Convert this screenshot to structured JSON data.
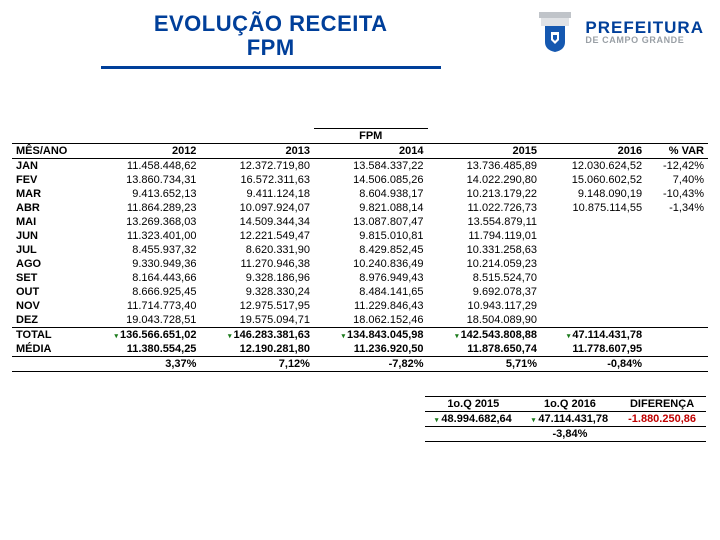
{
  "title_line1": "EVOLUÇÃO  RECEITA",
  "title_line2": "FPM",
  "brand_top": "PREFEITURA",
  "brand_bot": "DE CAMPO GRANDE",
  "table_header_center": "FPM",
  "columns": [
    "MÊS/ANO",
    "2012",
    "2013",
    "2014",
    "2015",
    "2016",
    "% VAR"
  ],
  "rows": [
    {
      "m": "JAN",
      "v": [
        "11.458.448,62",
        "12.372.719,80",
        "13.584.337,22",
        "13.736.485,89",
        "12.030.624,52",
        "-12,42%"
      ]
    },
    {
      "m": "FEV",
      "v": [
        "13.860.734,31",
        "16.572.311,63",
        "14.506.085,26",
        "14.022.290,80",
        "15.060.602,52",
        "7,40%"
      ]
    },
    {
      "m": "MAR",
      "v": [
        "9.413.652,13",
        "9.411.124,18",
        "8.604.938,17",
        "10.213.179,22",
        "9.148.090,19",
        "-10,43%"
      ]
    },
    {
      "m": "ABR",
      "v": [
        "11.864.289,23",
        "10.097.924,07",
        "9.821.088,14",
        "11.022.726,73",
        "10.875.114,55",
        "-1,34%"
      ]
    },
    {
      "m": "MAI",
      "v": [
        "13.269.368,03",
        "14.509.344,34",
        "13.087.807,47",
        "13.554.879,11",
        "",
        ""
      ]
    },
    {
      "m": "JUN",
      "v": [
        "11.323.401,00",
        "12.221.549,47",
        "9.815.010,81",
        "11.794.119,01",
        "",
        ""
      ]
    },
    {
      "m": "JUL",
      "v": [
        "8.455.937,32",
        "8.620.331,90",
        "8.429.852,45",
        "10.331.258,63",
        "",
        ""
      ]
    },
    {
      "m": "AGO",
      "v": [
        "9.330.949,36",
        "11.270.946,38",
        "10.240.836,49",
        "10.214.059,23",
        "",
        ""
      ]
    },
    {
      "m": "SET",
      "v": [
        "8.164.443,66",
        "9.328.186,96",
        "8.976.949,43",
        "8.515.524,70",
        "",
        ""
      ]
    },
    {
      "m": "OUT",
      "v": [
        "8.666.925,45",
        "9.328.330,24",
        "8.484.141,65",
        "9.692.078,37",
        "",
        ""
      ]
    },
    {
      "m": "NOV",
      "v": [
        "11.714.773,40",
        "12.975.517,95",
        "11.229.846,43",
        "10.943.117,29",
        "",
        ""
      ]
    },
    {
      "m": "DEZ",
      "v": [
        "19.043.728,51",
        "19.575.094,71",
        "18.062.152,46",
        "18.504.089,90",
        "",
        ""
      ]
    }
  ],
  "total": {
    "label": "TOTAL",
    "v": [
      "136.566.651,02",
      "146.283.381,63",
      "134.843.045,98",
      "142.543.808,88",
      "47.114.431,78",
      ""
    ]
  },
  "media": {
    "label": "MÉDIA",
    "v": [
      "11.380.554,25",
      "12.190.281,80",
      "11.236.920,50",
      "11.878.650,74",
      "11.778.607,95",
      ""
    ]
  },
  "pct": {
    "label": "",
    "v": [
      "3,37%",
      "7,12%",
      "-7,82%",
      "5,71%",
      "-0,84%",
      ""
    ]
  },
  "small": {
    "headers": [
      "1o.Q 2015",
      "1o.Q 2016",
      "DIFERENÇA"
    ],
    "values": [
      "48.994.682,64",
      "47.114.431,78",
      "-1.880.250,86"
    ],
    "pct": [
      "",
      "-3,84%",
      ""
    ]
  },
  "colors": {
    "title": "#003f9a",
    "neg": "#c00000"
  }
}
